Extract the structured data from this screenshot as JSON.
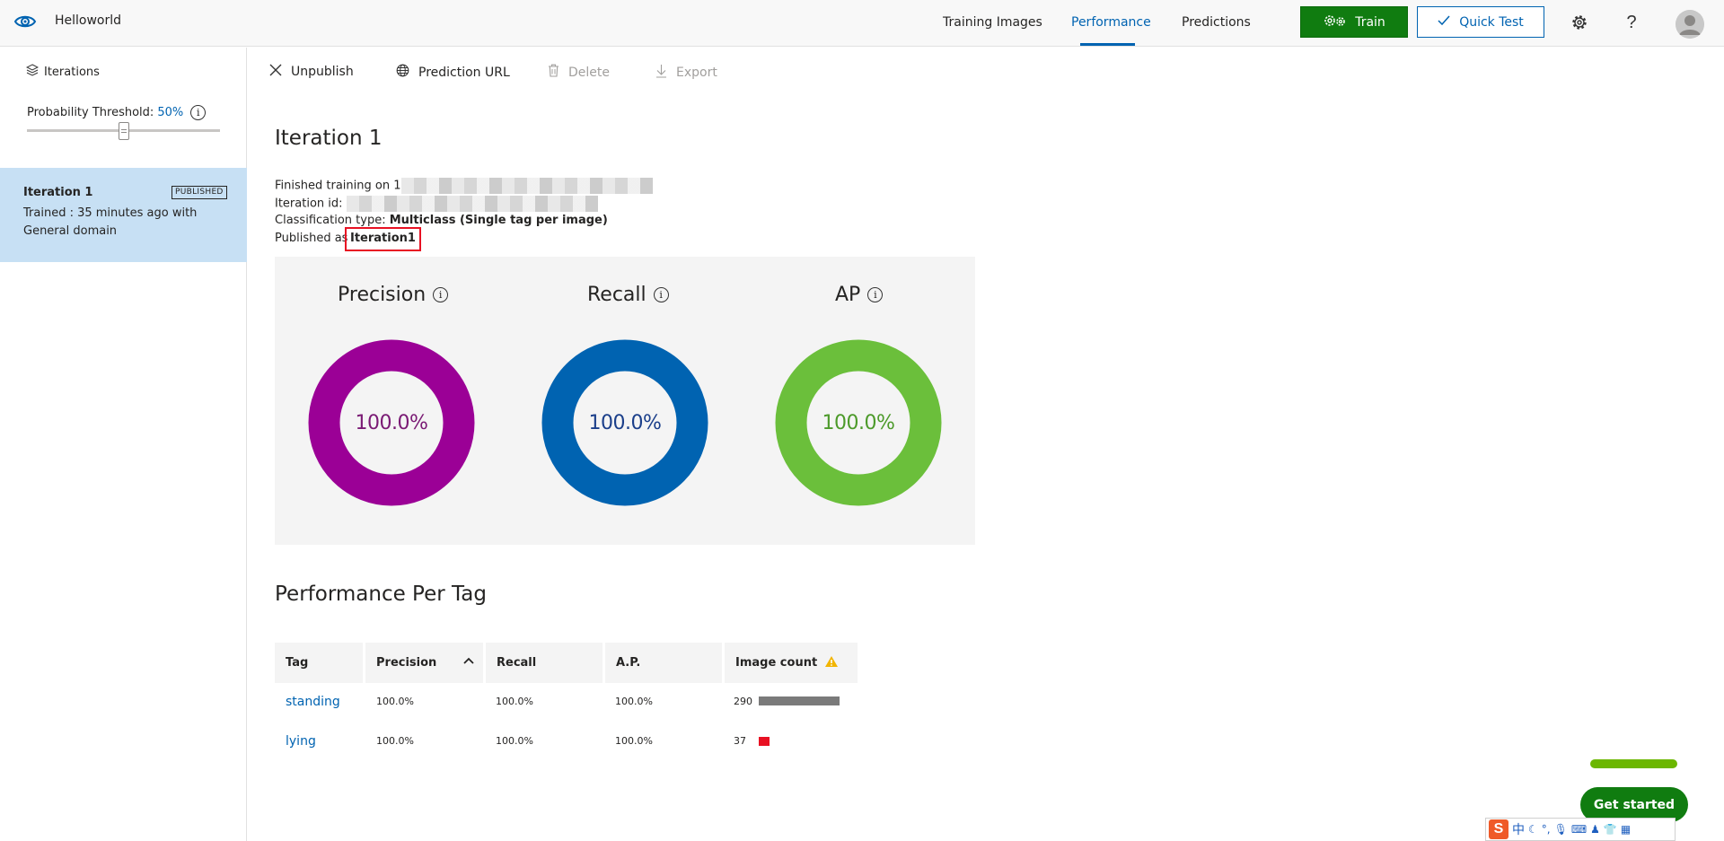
{
  "header": {
    "app_title": "Helloworld",
    "nav": [
      {
        "label": "Training Images",
        "active": false
      },
      {
        "label": "Performance",
        "active": true
      },
      {
        "label": "Predictions",
        "active": false
      }
    ],
    "train_label": "Train",
    "quick_test_label": "Quick Test",
    "help_glyph": "?",
    "accent": "#0063b1",
    "train_color": "#107c10"
  },
  "sidebar": {
    "heading": "Iterations",
    "threshold_label": "Probability Threshold:",
    "threshold_value": "50%",
    "threshold_level": 0.5,
    "iteration": {
      "name": "Iteration 1",
      "badge": "PUBLISHED",
      "description": "Trained : 35 minutes ago with General domain"
    }
  },
  "toolbar": {
    "unpublish": "Unpublish",
    "prediction_url": "Prediction URL",
    "delete": "Delete",
    "export": "Export"
  },
  "main": {
    "title": "Iteration 1",
    "finished_training_label": "Finished training on",
    "finished_training_prefix": "1",
    "iteration_id_label": "Iteration id:",
    "classification_label": "Classification type:",
    "classification_value": "Multiclass (Single tag per image)",
    "published_label": "Published as",
    "published_value": "Iteration1"
  },
  "metrics": [
    {
      "label": "Precision",
      "value": "100.0%",
      "ring_color": "#9b0096",
      "text_color": "#7a1a74"
    },
    {
      "label": "Recall",
      "value": "100.0%",
      "ring_color": "#0063b1",
      "text_color": "#1b3f8a"
    },
    {
      "label": "AP",
      "value": "100.0%",
      "ring_color": "#6bbf3b",
      "text_color": "#4c9a2a"
    }
  ],
  "per_tag": {
    "title": "Performance Per Tag",
    "columns": [
      "Tag",
      "Precision",
      "Recall",
      "A.P.",
      "Image count"
    ],
    "rows": [
      {
        "tag": "standing",
        "precision": "100.0%",
        "recall": "100.0%",
        "ap": "100.0%",
        "count": "290",
        "bar_color": "#7a7a7a"
      },
      {
        "tag": "lying",
        "precision": "100.0%",
        "recall": "100.0%",
        "ap": "100.0%",
        "count": "37",
        "bar_color": "#e81123"
      }
    ]
  },
  "get_started_label": "Get started",
  "ime": {
    "logo": "S",
    "mode": "中"
  }
}
